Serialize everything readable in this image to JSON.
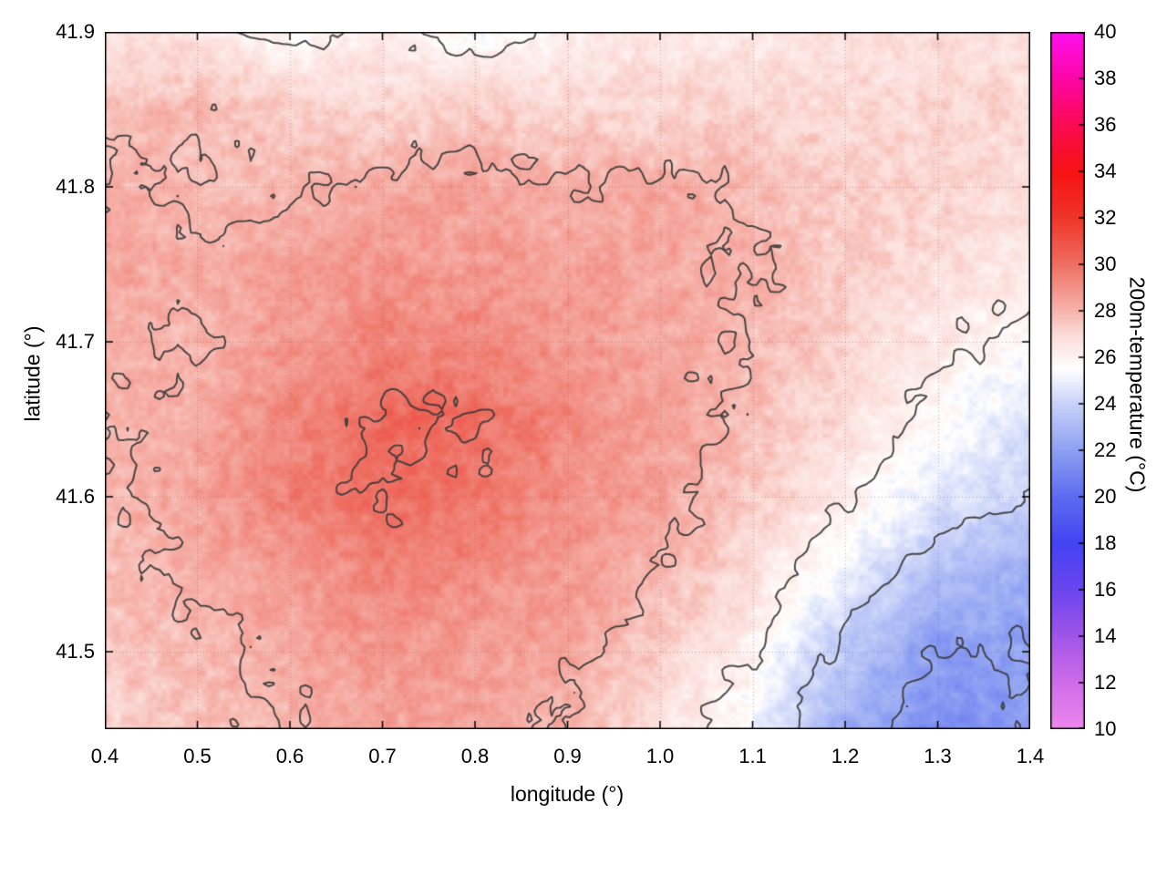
{
  "chart_data": {
    "type": "heatmap",
    "title": "",
    "xlabel": "longitude (°)",
    "ylabel": "latitude (°)",
    "colorbar_label": "200m-temperature (°C)",
    "x_range": [
      0.4,
      1.4
    ],
    "y_range": [
      41.45,
      41.9
    ],
    "x_tick_labels": [
      "0.4",
      "0.5",
      "0.6",
      "0.7",
      "0.8",
      "0.9",
      "1.0",
      "1.1",
      "1.2",
      "1.3",
      "1.4"
    ],
    "y_tick_labels": [
      "41.5",
      "41.6",
      "41.7",
      "41.8",
      "41.9"
    ],
    "colorbar_range": [
      10,
      40
    ],
    "colorbar_tick_labels": [
      "10",
      "12",
      "14",
      "16",
      "18",
      "20",
      "22",
      "24",
      "26",
      "28",
      "30",
      "32",
      "34",
      "36",
      "38",
      "40"
    ],
    "contour_levels": [
      22,
      24,
      26,
      28,
      30
    ],
    "contour_color": "#3a3a3a",
    "grid_on": true,
    "palette": [
      [
        10,
        "#ee86ee"
      ],
      [
        12,
        "#cf6ce8"
      ],
      [
        14,
        "#a055e8"
      ],
      [
        16,
        "#6b45ee"
      ],
      [
        18,
        "#4343f2"
      ],
      [
        20,
        "#5c6cf0"
      ],
      [
        22,
        "#8ea0f2"
      ],
      [
        24,
        "#c8d2f8"
      ],
      [
        25.5,
        "#ffffff"
      ],
      [
        27,
        "#fbdad6"
      ],
      [
        28,
        "#f6b4ac"
      ],
      [
        30,
        "#ee6e62"
      ],
      [
        32,
        "#ef3528"
      ],
      [
        34,
        "#f71212"
      ],
      [
        36,
        "#fa0a52"
      ],
      [
        38,
        "#fd06a6"
      ],
      [
        40,
        "#ff10f0"
      ]
    ],
    "grid": {
      "lon": [
        0.4,
        0.5,
        0.6,
        0.7,
        0.8,
        0.9,
        1.0,
        1.1,
        1.2,
        1.3,
        1.4
      ],
      "lat": [
        41.9,
        41.85,
        41.8,
        41.75,
        41.7,
        41.65,
        41.6,
        41.55,
        41.5,
        41.45
      ],
      "values": [
        [
          26.6,
          26.4,
          25.6,
          26.3,
          25.4,
          26.2,
          26.5,
          26.4,
          26.6,
          26.9,
          26.6
        ],
        [
          27.6,
          27.9,
          27.3,
          27.1,
          27.4,
          27.1,
          27.0,
          27.2,
          26.9,
          27.1,
          27.0
        ],
        [
          28.2,
          27.8,
          27.9,
          28.3,
          28.4,
          28.1,
          28.3,
          27.8,
          27.3,
          27.1,
          26.7
        ],
        [
          28.4,
          28.2,
          28.6,
          28.8,
          28.7,
          28.5,
          28.4,
          28.0,
          27.4,
          26.9,
          26.4
        ],
        [
          28.3,
          27.9,
          28.8,
          29.3,
          29.2,
          28.8,
          28.3,
          27.9,
          27.2,
          26.3,
          25.6
        ],
        [
          28.1,
          28.4,
          29.3,
          30.2,
          30.0,
          29.2,
          28.6,
          27.8,
          26.8,
          25.7,
          24.6
        ],
        [
          27.8,
          28.5,
          29.4,
          30.1,
          29.9,
          29.0,
          28.4,
          27.4,
          26.2,
          24.8,
          23.8
        ],
        [
          27.6,
          28.2,
          28.8,
          29.3,
          29.1,
          28.7,
          28.0,
          26.8,
          25.0,
          23.3,
          22.6
        ],
        [
          27.4,
          27.9,
          28.3,
          28.8,
          28.7,
          28.3,
          27.4,
          26.0,
          23.6,
          21.9,
          22.0
        ],
        [
          27.2,
          27.6,
          28.0,
          28.5,
          28.4,
          27.9,
          26.8,
          25.2,
          22.6,
          21.3,
          21.8
        ]
      ]
    }
  }
}
